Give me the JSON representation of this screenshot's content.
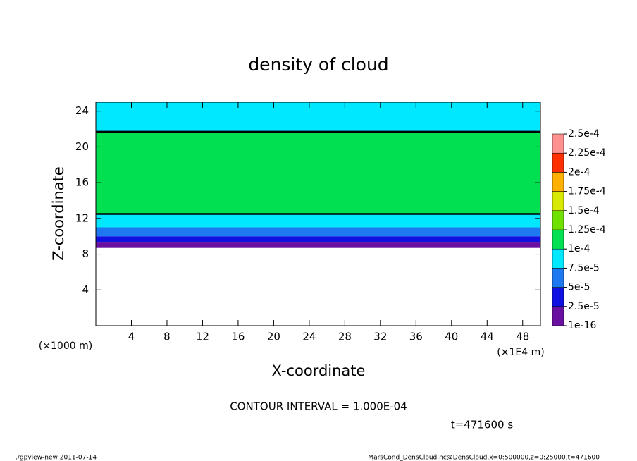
{
  "chart_data": {
    "type": "contour",
    "title": "density of cloud",
    "x_label": "X-coordinate",
    "y_label": "Z-coordinate",
    "x_unit": "(×1E4 m)",
    "y_unit": "(×1000 m)",
    "xlim": [
      0,
      50
    ],
    "xticks": [
      4,
      8,
      12,
      16,
      20,
      24,
      28,
      32,
      36,
      40,
      44,
      48
    ],
    "ylim": [
      0,
      25
    ],
    "yticks": [
      4,
      8,
      12,
      16,
      20,
      24
    ],
    "z_edges": [
      8.7,
      9.3,
      10,
      11,
      12.5,
      21.7,
      25
    ],
    "values": [
      1e-05,
      3e-05,
      6e-05,
      8e-05,
      0.00011,
      8e-05
    ],
    "levels": [
      {
        "value": 1e-16,
        "label": "1e-16"
      },
      {
        "value": 2.5e-05,
        "label": "2.5e-5"
      },
      {
        "value": 5e-05,
        "label": "5e-5"
      },
      {
        "value": 7.5e-05,
        "label": "7.5e-5"
      },
      {
        "value": 0.0001,
        "label": "1e-4"
      },
      {
        "value": 0.000125,
        "label": "1.25e-4"
      },
      {
        "value": 0.00015,
        "label": "1.5e-4"
      },
      {
        "value": 0.000175,
        "label": "1.75e-4"
      },
      {
        "value": 0.0002,
        "label": "2e-4"
      },
      {
        "value": 0.000225,
        "label": "2.25e-4"
      },
      {
        "value": 0.00025,
        "label": "2.5e-4"
      }
    ],
    "level_colors": [
      "#6a10a0",
      "#1010e0",
      "#1e78f0",
      "#00e8ff",
      "#00e050",
      "#70e000",
      "#d8e800",
      "#ffb000",
      "#ff3000",
      "#ff9090"
    ],
    "contour_note": "CONTOUR INTERVAL = 1.000E-04",
    "time_note": "t=471600 s",
    "footer_left": "./gpview-new   2011-07-14",
    "footer_right": "MarsCond_DensCloud.nc@DensCloud,x=0:500000,z=0:25000,t=471600"
  }
}
